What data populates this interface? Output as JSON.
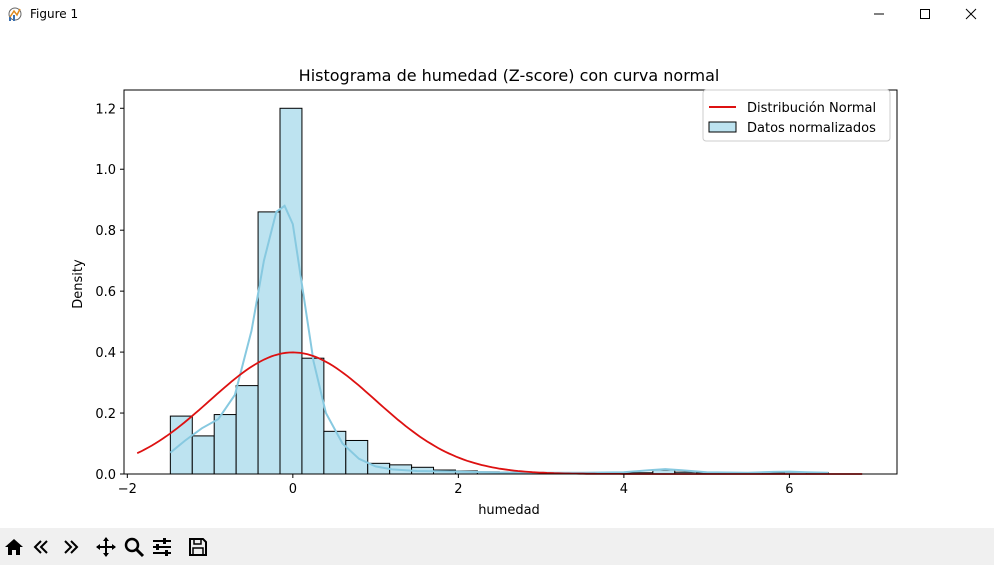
{
  "window": {
    "title": "Figure 1",
    "controls": [
      "minimize-icon",
      "maximize-icon",
      "close-icon"
    ]
  },
  "toolbar": {
    "buttons": [
      "home-icon",
      "back-icon",
      "forward-icon",
      "pan-icon",
      "zoom-icon",
      "configure-subplots-icon",
      "save-icon"
    ],
    "coords": ""
  },
  "chart_data": {
    "type": "bar",
    "title": "Histograma de humedad (Z-score) con curva normal",
    "xlabel": "humedad",
    "ylabel": "Density",
    "xlim": [
      -2.04,
      7.3
    ],
    "ylim": [
      0,
      1.26
    ],
    "xticks": [
      -2,
      0,
      2,
      4,
      6
    ],
    "yticks": [
      0.0,
      0.2,
      0.4,
      0.6,
      0.8,
      1.0,
      1.2
    ],
    "grid": false,
    "legend_position": "top-right",
    "bar_color": "#bde3f0",
    "bar_edge_color": "#000000",
    "histogram": {
      "name": "Datos normalizados",
      "bin_width": 0.265,
      "bin_starts": [
        -1.48,
        -1.215,
        -0.95,
        -0.685,
        -0.42,
        -0.155,
        0.11,
        0.375,
        0.64,
        0.905,
        1.17,
        1.435,
        1.7,
        1.965,
        2.23,
        2.495,
        2.76,
        3.025,
        3.29,
        3.555,
        3.82,
        4.085,
        4.35,
        4.615,
        4.88,
        5.145,
        5.41,
        5.675,
        5.94,
        6.205
      ],
      "density": [
        0.19,
        0.125,
        0.195,
        0.29,
        0.86,
        1.2,
        0.38,
        0.14,
        0.11,
        0.035,
        0.03,
        0.022,
        0.013,
        0.01,
        0.007,
        0.006,
        0.005,
        0.004,
        0.004,
        0.003,
        0.003,
        0.004,
        0.013,
        0.006,
        0.004,
        0.004,
        0.004,
        0.004,
        0.006,
        0.004
      ]
    },
    "kde": {
      "color": "#87c9e0",
      "x": [
        -1.48,
        -1.3,
        -1.1,
        -0.9,
        -0.7,
        -0.5,
        -0.35,
        -0.2,
        -0.1,
        0.0,
        0.1,
        0.25,
        0.4,
        0.6,
        0.8,
        1.0,
        1.2,
        1.5,
        2.0,
        2.5,
        3.0,
        3.5,
        4.0,
        4.3,
        4.5,
        4.7,
        5.0,
        5.5,
        5.8,
        6.0,
        6.2,
        6.47
      ],
      "y": [
        0.07,
        0.11,
        0.15,
        0.18,
        0.26,
        0.47,
        0.7,
        0.86,
        0.88,
        0.82,
        0.64,
        0.37,
        0.2,
        0.1,
        0.05,
        0.025,
        0.015,
        0.01,
        0.008,
        0.005,
        0.004,
        0.004,
        0.006,
        0.012,
        0.016,
        0.012,
        0.006,
        0.004,
        0.007,
        0.008,
        0.006,
        0.004
      ]
    },
    "normal_curve": {
      "name": "Distribución Normal",
      "color": "#dd1111",
      "mean": 0,
      "std": 1,
      "x_range": [
        -1.88,
        6.88
      ]
    }
  }
}
